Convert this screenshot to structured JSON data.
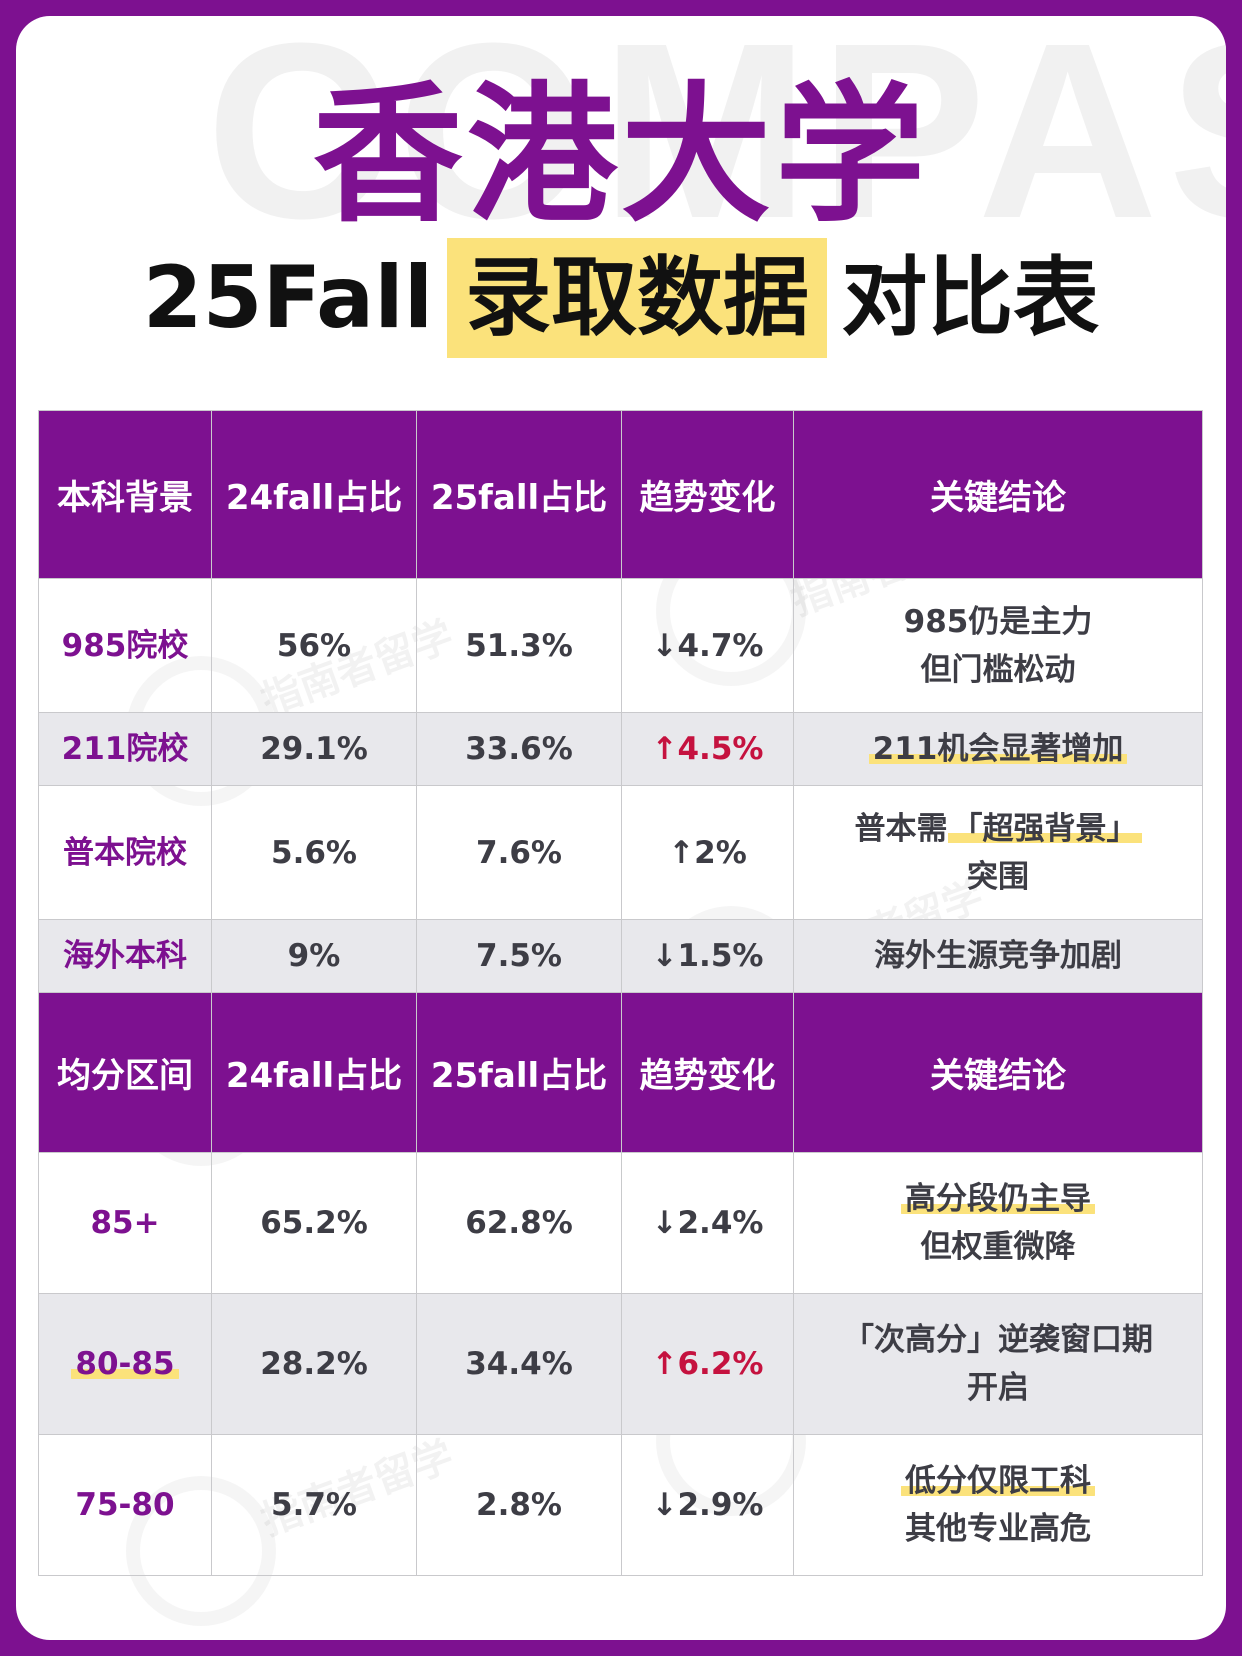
{
  "title": {
    "main": "香港大学",
    "sub_prefix": "25Fall",
    "sub_highlight": "录取数据",
    "sub_suffix": "对比表"
  },
  "watermark": {
    "bg_text": "COMPAS",
    "stamp_text": "指南者留学"
  },
  "colors": {
    "brand": "#7d1190",
    "highlight": "#fbe27b",
    "up_red": "#c5123f",
    "row_shade": "#e8e8ec"
  },
  "table1": {
    "headers": [
      "本科背景",
      "24fall占比",
      "25fall占比",
      "趋势变化",
      "关键结论"
    ],
    "rows": [
      {
        "cat": "985院校",
        "y24": "56%",
        "y25": "51.3%",
        "trend": "↓4.7%",
        "c1": "985仍是主力",
        "c2": "但门槛松动"
      },
      {
        "cat": "211院校",
        "y24": "29.1%",
        "y25": "33.6%",
        "trend": "↑4.5%",
        "c1": "211机会显著增加",
        "c2": ""
      },
      {
        "cat": "普本院校",
        "y24": "5.6%",
        "y25": "7.6%",
        "trend": "↑2%",
        "c1a": "普本需",
        "c1b": "「超强背景」",
        "c2": "突围"
      },
      {
        "cat": "海外本科",
        "y24": "9%",
        "y25": "7.5%",
        "trend": "↓1.5%",
        "c1": "海外生源竞争加剧",
        "c2": ""
      }
    ]
  },
  "table2": {
    "headers": [
      "均分区间",
      "24fall占比",
      "25fall占比",
      "趋势变化",
      "关键结论"
    ],
    "rows": [
      {
        "cat": "85+",
        "y24": "65.2%",
        "y25": "62.8%",
        "trend": "↓2.4%",
        "c1": "高分段仍主导",
        "c2": "但权重微降"
      },
      {
        "cat": "80-85",
        "y24": "28.2%",
        "y25": "34.4%",
        "trend": "↑6.2%",
        "c1": "「次高分」逆袭窗口期",
        "c2": "开启"
      },
      {
        "cat": "75-80",
        "y24": "5.7%",
        "y25": "2.8%",
        "trend": "↓2.9%",
        "c1": "低分仅限工科",
        "c2": "其他专业高危"
      }
    ]
  }
}
